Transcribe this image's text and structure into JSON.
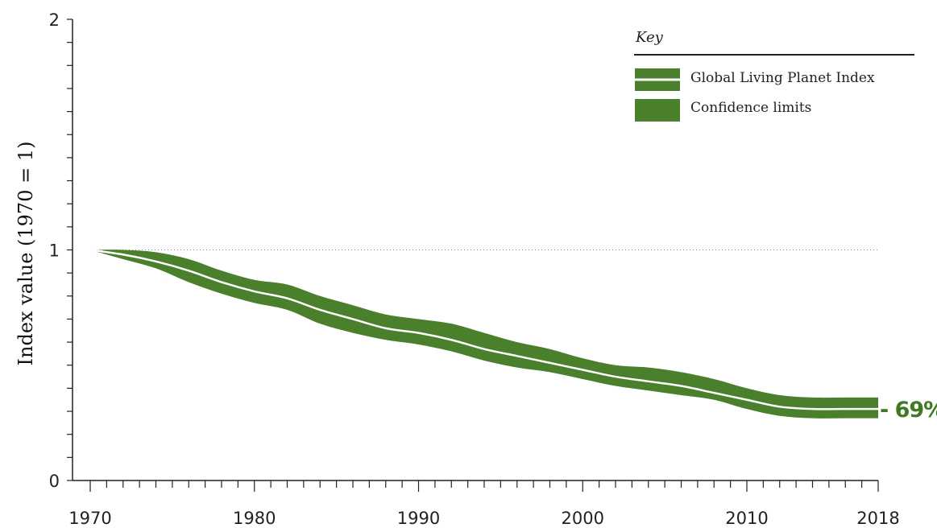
{
  "chart_data": {
    "type": "area",
    "title": "",
    "xlabel": "",
    "ylabel": "Index value (1970 = 1)",
    "xlim": [
      1970,
      2018
    ],
    "ylim": [
      0,
      2
    ],
    "x_ticks": [
      "1970",
      "1980",
      "1990",
      "2000",
      "2010",
      "2018"
    ],
    "y_ticks": [
      "0",
      "1",
      "2"
    ],
    "reference_line": 1,
    "grid": false,
    "legend_position": "top-right",
    "legend_title": "Key",
    "end_label": "- 69%",
    "colors": {
      "band": "#4a7f2c",
      "line": "#ffffff",
      "label": "#3f7a22"
    },
    "series": [
      {
        "name": "Global Living Planet Index",
        "x": [
          1970,
          1972,
          1974,
          1976,
          1978,
          1980,
          1982,
          1984,
          1986,
          1988,
          1990,
          1992,
          1994,
          1996,
          1998,
          2000,
          2002,
          2004,
          2006,
          2008,
          2010,
          2012,
          2014,
          2016,
          2018
        ],
        "values": [
          1.0,
          0.98,
          0.95,
          0.91,
          0.86,
          0.82,
          0.79,
          0.74,
          0.7,
          0.66,
          0.64,
          0.61,
          0.57,
          0.54,
          0.51,
          0.48,
          0.45,
          0.43,
          0.41,
          0.38,
          0.35,
          0.32,
          0.31,
          0.31,
          0.31
        ]
      },
      {
        "name": "Confidence limits",
        "x": [
          1970,
          1972,
          1974,
          1976,
          1978,
          1980,
          1982,
          1984,
          1986,
          1988,
          1990,
          1992,
          1994,
          1996,
          1998,
          2000,
          2002,
          2004,
          2006,
          2008,
          2010,
          2012,
          2014,
          2016,
          2018
        ],
        "upper": [
          1.0,
          1.0,
          0.99,
          0.96,
          0.91,
          0.87,
          0.85,
          0.8,
          0.76,
          0.72,
          0.7,
          0.68,
          0.64,
          0.6,
          0.57,
          0.53,
          0.5,
          0.49,
          0.47,
          0.44,
          0.4,
          0.37,
          0.36,
          0.36,
          0.36
        ],
        "lower": [
          1.0,
          0.96,
          0.92,
          0.86,
          0.81,
          0.77,
          0.74,
          0.68,
          0.64,
          0.61,
          0.59,
          0.56,
          0.52,
          0.49,
          0.47,
          0.44,
          0.41,
          0.39,
          0.37,
          0.35,
          0.31,
          0.28,
          0.27,
          0.27,
          0.27
        ]
      }
    ]
  }
}
